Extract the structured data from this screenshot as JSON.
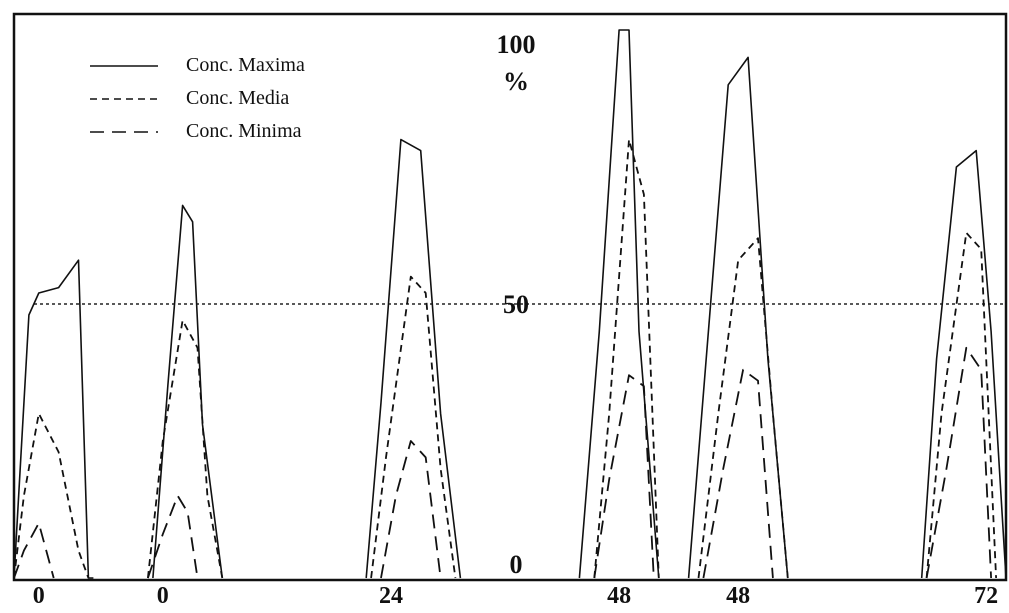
{
  "chart_data": {
    "type": "line",
    "title": "",
    "xlabel": "",
    "ylabel": "%",
    "ylim": [
      0,
      100
    ],
    "y_ticks": [
      "0",
      "50",
      "100"
    ],
    "reference_line": {
      "y": 50,
      "style": "dotted"
    },
    "x_tick_labels": [
      "0",
      "0",
      "24",
      "48",
      "48",
      "72"
    ],
    "legend": {
      "position": "top-left",
      "entries": [
        {
          "label": "Conc. Maxima",
          "dash": "solid"
        },
        {
          "label": "Conc. Media",
          "dash": "dashed"
        },
        {
          "label": "Conc. Minima",
          "dash": "long-dashed"
        }
      ]
    },
    "series": [
      {
        "name": "Conc. Maxima",
        "peaks": [
          {
            "x": [
              0,
              3,
              5,
              9,
              13,
              15,
              16
            ],
            "y": [
              0,
              48,
              52,
              53,
              58,
              0,
              0
            ]
          },
          {
            "x": [
              28,
              31,
              34,
              36,
              38,
              42
            ],
            "y": [
              0,
              35,
              68,
              65,
              28,
              0
            ]
          },
          {
            "x": [
              71,
              74,
              78,
              82,
              86,
              90
            ],
            "y": [
              0,
              32,
              80,
              78,
              30,
              0
            ]
          },
          {
            "x": [
              114,
              118,
              122,
              124,
              126,
              130
            ],
            "y": [
              0,
              45,
              100,
              100,
              45,
              0
            ]
          },
          {
            "x": [
              136,
              140,
              144,
              148,
              152,
              156
            ],
            "y": [
              0,
              45,
              90,
              95,
              40,
              0
            ]
          },
          {
            "x": [
              183,
              186,
              190,
              194,
              197,
              200
            ],
            "y": [
              0,
              40,
              75,
              78,
              45,
              0
            ]
          }
        ]
      },
      {
        "name": "Conc. Media",
        "peaks": [
          {
            "x": [
              0,
              2,
              5,
              9,
              13,
              15
            ],
            "y": [
              0,
              15,
              30,
              23,
              5,
              0
            ]
          },
          {
            "x": [
              27,
              30,
              34,
              37,
              39,
              42
            ],
            "y": [
              0,
              25,
              47,
              42,
              15,
              0
            ]
          },
          {
            "x": [
              72,
              75,
              80,
              83,
              86,
              89
            ],
            "y": [
              0,
              22,
              55,
              52,
              20,
              0
            ]
          },
          {
            "x": [
              117,
              120,
              124,
              127,
              130
            ],
            "y": [
              0,
              30,
              80,
              70,
              0
            ]
          },
          {
            "x": [
              138,
              142,
              146,
              150,
              153,
              156
            ],
            "y": [
              0,
              30,
              58,
              62,
              30,
              0
            ]
          },
          {
            "x": [
              184,
              187,
              192,
              195,
              198
            ],
            "y": [
              0,
              30,
              63,
              60,
              0
            ]
          }
        ]
      },
      {
        "name": "Conc. Minima",
        "peaks": [
          {
            "x": [
              0,
              2,
              5,
              8
            ],
            "y": [
              0,
              5,
              10,
              0
            ]
          },
          {
            "x": [
              27,
              30,
              33,
              35,
              37
            ],
            "y": [
              0,
              8,
              15,
              12,
              0
            ]
          },
          {
            "x": [
              74,
              77,
              80,
              83,
              86
            ],
            "y": [
              0,
              15,
              25,
              22,
              0
            ]
          },
          {
            "x": [
              117,
              120,
              124,
              127,
              129
            ],
            "y": [
              0,
              18,
              37,
              35,
              0
            ]
          },
          {
            "x": [
              139,
              143,
              147,
              150,
              153
            ],
            "y": [
              0,
              20,
              38,
              36,
              0
            ]
          },
          {
            "x": [
              184,
              188,
              192,
              195,
              197
            ],
            "y": [
              0,
              20,
              42,
              38,
              0
            ]
          }
        ]
      }
    ],
    "x_tick_positions": [
      5,
      30,
      76,
      122,
      146,
      196
    ],
    "xlim": [
      0,
      200
    ]
  }
}
